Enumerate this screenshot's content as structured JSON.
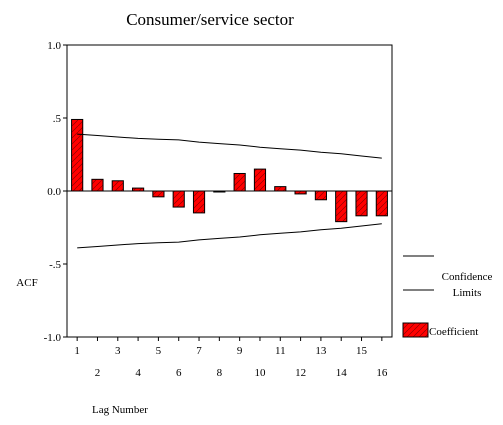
{
  "chart_data": {
    "type": "bar",
    "title": "Consumer/service sector",
    "xlabel": "Lag Number",
    "ylabel": "ACF",
    "ylim": [
      -1.0,
      1.0
    ],
    "yticks": [
      {
        "value": 1.0,
        "label": "1.0"
      },
      {
        "value": 0.5,
        "label": ".5"
      },
      {
        "value": 0.0,
        "label": "0.0"
      },
      {
        "value": -0.5,
        "label": "-.5"
      },
      {
        "value": -1.0,
        "label": "-1.0"
      }
    ],
    "categories": [
      "1",
      "2",
      "3",
      "4",
      "5",
      "6",
      "7",
      "8",
      "9",
      "10",
      "11",
      "12",
      "13",
      "14",
      "15",
      "16"
    ],
    "series": [
      {
        "name": "Coefficient",
        "color": "#ff0000",
        "values": [
          0.49,
          0.08,
          0.07,
          0.02,
          -0.04,
          -0.11,
          -0.15,
          0.0,
          0.12,
          0.15,
          0.03,
          -0.02,
          -0.06,
          -0.21,
          -0.17,
          -0.17
        ]
      }
    ],
    "confidence_limits": {
      "upper": [
        0.39,
        0.38,
        0.37,
        0.36,
        0.355,
        0.35,
        0.335,
        0.325,
        0.315,
        0.3,
        0.29,
        0.28,
        0.265,
        0.255,
        0.24,
        0.225
      ],
      "lower": [
        -0.39,
        -0.38,
        -0.37,
        -0.36,
        -0.355,
        -0.35,
        -0.335,
        -0.325,
        -0.315,
        -0.3,
        -0.29,
        -0.28,
        -0.265,
        -0.255,
        -0.24,
        -0.225
      ]
    },
    "legend": {
      "position": "right",
      "confidence_label_1": "Confidence",
      "confidence_label_2": "Limits",
      "coefficient_label": "Coefficient"
    }
  }
}
